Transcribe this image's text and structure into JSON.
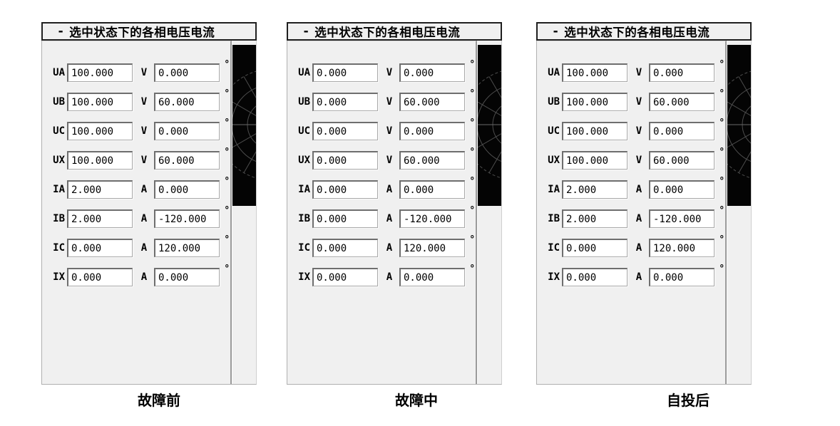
{
  "group": {
    "title_prefix": "-",
    "title": "选中状态下的各相电压电流"
  },
  "degree_symbol": "°",
  "colors": {
    "panel_background": "#f0f0f0",
    "phasor_background": "#040404",
    "phasor_grid": "#4d4d4d",
    "border_dark": "#1f1f1f",
    "text": "#000000"
  },
  "panels": [
    {
      "caption": "故障前",
      "rows": [
        {
          "label": "UA",
          "value": "100.000",
          "unit": "V",
          "angle": "0.000"
        },
        {
          "label": "UB",
          "value": "100.000",
          "unit": "V",
          "angle": "60.000"
        },
        {
          "label": "UC",
          "value": "100.000",
          "unit": "V",
          "angle": "0.000"
        },
        {
          "label": "UX",
          "value": "100.000",
          "unit": "V",
          "angle": "60.000"
        },
        {
          "label": "IA",
          "value": "2.000",
          "unit": "A",
          "angle": "0.000"
        },
        {
          "label": "IB",
          "value": "2.000",
          "unit": "A",
          "angle": "-120.000"
        },
        {
          "label": "IC",
          "value": "0.000",
          "unit": "A",
          "angle": "120.000"
        },
        {
          "label": "IX",
          "value": "0.000",
          "unit": "A",
          "angle": "0.000"
        }
      ]
    },
    {
      "caption": "故障中",
      "rows": [
        {
          "label": "UA",
          "value": "0.000",
          "unit": "V",
          "angle": "0.000"
        },
        {
          "label": "UB",
          "value": "0.000",
          "unit": "V",
          "angle": "60.000"
        },
        {
          "label": "UC",
          "value": "0.000",
          "unit": "V",
          "angle": "0.000"
        },
        {
          "label": "UX",
          "value": "0.000",
          "unit": "V",
          "angle": "60.000"
        },
        {
          "label": "IA",
          "value": "0.000",
          "unit": "A",
          "angle": "0.000"
        },
        {
          "label": "IB",
          "value": "0.000",
          "unit": "A",
          "angle": "-120.000"
        },
        {
          "label": "IC",
          "value": "0.000",
          "unit": "A",
          "angle": "120.000"
        },
        {
          "label": "IX",
          "value": "0.000",
          "unit": "A",
          "angle": "0.000"
        }
      ]
    },
    {
      "caption": "自投后",
      "rows": [
        {
          "label": "UA",
          "value": "100.000",
          "unit": "V",
          "angle": "0.000"
        },
        {
          "label": "UB",
          "value": "100.000",
          "unit": "V",
          "angle": "60.000"
        },
        {
          "label": "UC",
          "value": "100.000",
          "unit": "V",
          "angle": "0.000"
        },
        {
          "label": "UX",
          "value": "100.000",
          "unit": "V",
          "angle": "60.000"
        },
        {
          "label": "IA",
          "value": "2.000",
          "unit": "A",
          "angle": "0.000"
        },
        {
          "label": "IB",
          "value": "2.000",
          "unit": "A",
          "angle": "-120.000"
        },
        {
          "label": "IC",
          "value": "0.000",
          "unit": "A",
          "angle": "120.000"
        },
        {
          "label": "IX",
          "value": "0.000",
          "unit": "A",
          "angle": "0.000"
        }
      ]
    }
  ]
}
